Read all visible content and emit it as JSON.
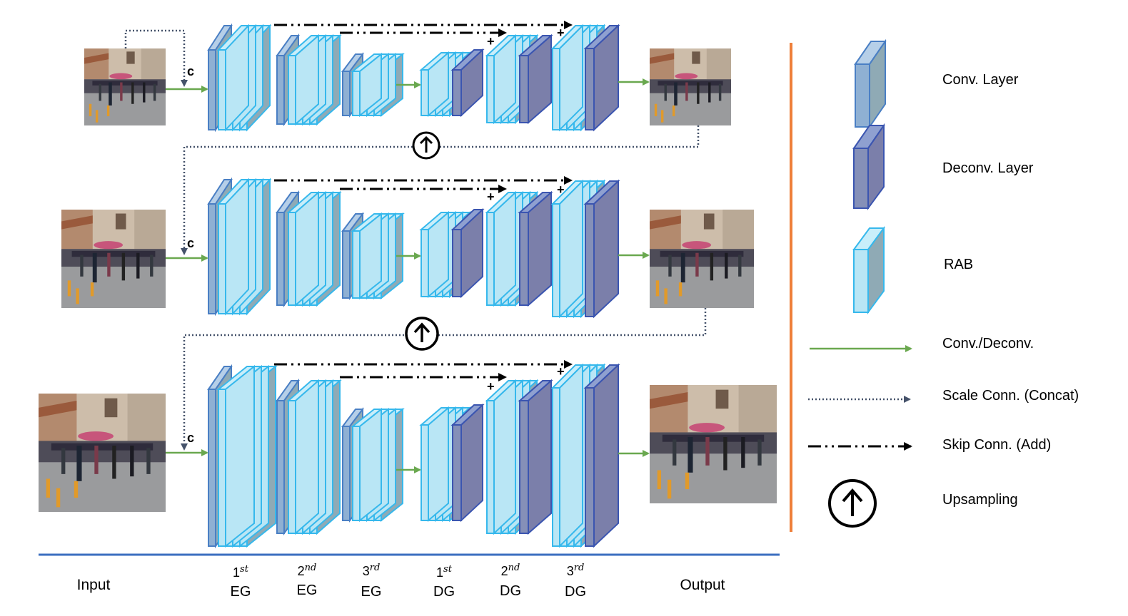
{
  "concat_label": "c",
  "add_label": "+",
  "upsample_glyph": "↑",
  "bottom_labels": {
    "input": "Input",
    "output": "Output",
    "stages": [
      {
        "ord": "1",
        "sup": "st",
        "name": "EG"
      },
      {
        "ord": "2",
        "sup": "nd",
        "name": "EG"
      },
      {
        "ord": "3",
        "sup": "rd",
        "name": "EG"
      },
      {
        "ord": "1",
        "sup": "st",
        "name": "DG"
      },
      {
        "ord": "2",
        "sup": "nd",
        "name": "DG"
      },
      {
        "ord": "3",
        "sup": "rd",
        "name": "DG"
      }
    ]
  },
  "legend": {
    "conv": "Conv. Layer",
    "deconv": "Deconv. Layer",
    "rab": "RAB",
    "conv_deconv": "Conv./Deconv.",
    "scale_conn": "Scale Conn. (Concat)",
    "skip_conn": "Skip Conn. (Add)",
    "upsampling": "Upsampling"
  },
  "colors": {
    "conv_fill": "#8fb0d3",
    "conv_stroke": "#4a7fc4",
    "deconv_fill": "#7b7faa",
    "deconv_stroke": "#3b55b0",
    "rab_fill": "#b9e6f5",
    "rab_stroke": "#36b8ec",
    "block_body": "#8faab5",
    "green_arrow": "#6aa84f",
    "scale_dot": "#45526a",
    "divider_orange": "#ee7f3a",
    "baseline_blue": "#3b6fc0"
  }
}
